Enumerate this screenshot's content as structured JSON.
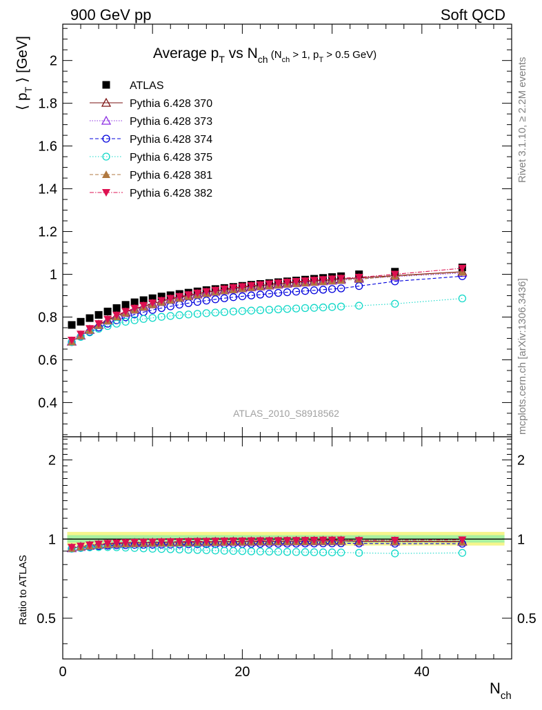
{
  "header": {
    "left": "900 GeV pp",
    "right": "Soft QCD"
  },
  "side": {
    "rivet": "Rivet 3.1.10, ≥ 2.2M events",
    "mcplots": "mcplots.cern.ch [arXiv:1306.3436]"
  },
  "colors": {
    "ATLAS": "#000000",
    "p370": "#7a1010",
    "p373": "#8a2be2",
    "p374": "#0000dd",
    "p375": "#10d8c8",
    "p381": "#b07840",
    "p382": "#dd1050",
    "band_outer": "#f5f58c",
    "band_inner": "#a8f0a0"
  },
  "chart_data": [
    {
      "type": "scatter",
      "title_parts": {
        "main": "Average p",
        "main_sub": "T",
        "vs": " vs N",
        "vs_sub": "ch",
        "cond1": " (N",
        "cond1_sub": "ch",
        "cond2": " > 1, p",
        "cond2_sub": "T",
        "cond3": " > 0.5 GeV)"
      },
      "ylabel_parts": {
        "open": "⟨ p",
        "sub": "T",
        "close": " ⟩  [GeV]"
      },
      "watermark": "ATLAS_2010_S8918562",
      "xlim": [
        0,
        50
      ],
      "ylim": [
        0.24,
        2.17
      ],
      "yticks": [
        0.4,
        0.6,
        0.8,
        1.0,
        1.2,
        1.4,
        1.6,
        1.8,
        2.0
      ],
      "ytick_labels": [
        "0.4",
        "0.6",
        "0.8",
        "1",
        "1.2",
        "1.4",
        "1.6",
        "1.8",
        "2"
      ],
      "legend_position": "top-left",
      "x": [
        1,
        2,
        3,
        4,
        5,
        6,
        7,
        8,
        9,
        10,
        11,
        12,
        13,
        14,
        15,
        16,
        17,
        18,
        19,
        20,
        21,
        22,
        23,
        24,
        25,
        26,
        27,
        28,
        29,
        30,
        31,
        33,
        37,
        44.5
      ],
      "series": [
        {
          "name": "ATLAS",
          "color_key": "ATLAS",
          "marker": "square",
          "values": [
            0.763,
            0.778,
            0.795,
            0.81,
            0.826,
            0.842,
            0.857,
            0.869,
            0.879,
            0.888,
            0.896,
            0.902,
            0.908,
            0.914,
            0.92,
            0.926,
            0.931,
            0.936,
            0.941,
            0.946,
            0.951,
            0.955,
            0.959,
            0.963,
            0.967,
            0.971,
            0.975,
            0.979,
            0.983,
            0.987,
            0.991,
            1.0,
            1.012,
            1.032
          ]
        },
        {
          "name": "Pythia 6.428 370",
          "color_key": "p370",
          "marker": "triangle-up-open",
          "dash": "",
          "values": [
            0.685,
            0.714,
            0.741,
            0.765,
            0.786,
            0.806,
            0.823,
            0.838,
            0.851,
            0.863,
            0.874,
            0.884,
            0.893,
            0.901,
            0.909,
            0.916,
            0.922,
            0.928,
            0.934,
            0.939,
            0.944,
            0.948,
            0.952,
            0.956,
            0.96,
            0.963,
            0.966,
            0.969,
            0.972,
            0.975,
            0.978,
            0.983,
            0.994,
            1.012
          ]
        },
        {
          "name": "Pythia 6.428 373",
          "color_key": "p373",
          "marker": "triangle-up-open",
          "dash": "1.5,2",
          "values": [
            0.686,
            0.713,
            0.739,
            0.762,
            0.783,
            0.802,
            0.819,
            0.834,
            0.847,
            0.859,
            0.87,
            0.88,
            0.889,
            0.897,
            0.905,
            0.912,
            0.918,
            0.924,
            0.929,
            0.934,
            0.939,
            0.943,
            0.947,
            0.951,
            0.955,
            0.958,
            0.961,
            0.964,
            0.967,
            0.97,
            0.973,
            0.978,
            0.989,
            1.006
          ]
        },
        {
          "name": "Pythia 6.428 374",
          "color_key": "p374",
          "marker": "circle-open",
          "dash": "5,3",
          "values": [
            0.683,
            0.708,
            0.731,
            0.751,
            0.769,
            0.785,
            0.799,
            0.812,
            0.823,
            0.833,
            0.842,
            0.85,
            0.858,
            0.865,
            0.871,
            0.877,
            0.883,
            0.888,
            0.893,
            0.897,
            0.901,
            0.905,
            0.909,
            0.913,
            0.916,
            0.919,
            0.922,
            0.925,
            0.928,
            0.931,
            0.934,
            0.945,
            0.967,
            0.991
          ]
        },
        {
          "name": "Pythia 6.428 375",
          "color_key": "p375",
          "marker": "circle-open",
          "dash": "1.5,2.5",
          "values": [
            0.683,
            0.707,
            0.728,
            0.745,
            0.758,
            0.769,
            0.778,
            0.785,
            0.791,
            0.796,
            0.801,
            0.805,
            0.809,
            0.812,
            0.815,
            0.818,
            0.821,
            0.823,
            0.826,
            0.828,
            0.83,
            0.832,
            0.834,
            0.836,
            0.838,
            0.84,
            0.842,
            0.843,
            0.845,
            0.847,
            0.849,
            0.853,
            0.862,
            0.887
          ]
        },
        {
          "name": "Pythia 6.428 381",
          "color_key": "p381",
          "marker": "triangle-up-filled",
          "dash": "5,3",
          "values": [
            0.684,
            0.712,
            0.738,
            0.761,
            0.782,
            0.801,
            0.818,
            0.833,
            0.846,
            0.858,
            0.869,
            0.879,
            0.888,
            0.896,
            0.903,
            0.91,
            0.917,
            0.923,
            0.928,
            0.933,
            0.938,
            0.942,
            0.946,
            0.95,
            0.954,
            0.957,
            0.96,
            0.963,
            0.966,
            0.969,
            0.972,
            0.977,
            0.991,
            1.01
          ]
        },
        {
          "name": "Pythia 6.428 382",
          "color_key": "p382",
          "marker": "triangle-down-filled",
          "dash": "6,2,1.5,2",
          "values": [
            0.692,
            0.72,
            0.746,
            0.769,
            0.79,
            0.809,
            0.826,
            0.841,
            0.854,
            0.866,
            0.877,
            0.887,
            0.896,
            0.904,
            0.912,
            0.919,
            0.925,
            0.931,
            0.937,
            0.942,
            0.947,
            0.951,
            0.955,
            0.959,
            0.963,
            0.966,
            0.969,
            0.972,
            0.975,
            0.978,
            0.981,
            0.986,
            1.0,
            1.028
          ]
        }
      ]
    },
    {
      "type": "scatter",
      "ylabel": "Ratio to ATLAS",
      "xlabel_parts": {
        "main": "N",
        "sub": "ch"
      },
      "xlim": [
        0,
        50
      ],
      "ylim": [
        0.35,
        2.45
      ],
      "yscale": "log",
      "xticks": [
        0,
        20,
        40
      ],
      "xtick_labels": [
        "0",
        "20",
        "40"
      ],
      "yticks": [
        0.5,
        1,
        2
      ],
      "ytick_labels": [
        "0.5",
        "1",
        "2"
      ],
      "band_outer": [
        0.945,
        1.065
      ],
      "band_inner": [
        0.97,
        1.035
      ],
      "x": [
        1,
        2,
        3,
        4,
        5,
        6,
        7,
        8,
        9,
        10,
        11,
        12,
        13,
        14,
        15,
        16,
        17,
        18,
        19,
        20,
        21,
        22,
        23,
        24,
        25,
        26,
        27,
        28,
        29,
        30,
        31,
        33,
        37,
        44.5
      ],
      "series": [
        {
          "name": "Pythia 6.428 370",
          "color_key": "p370",
          "marker": "triangle-up-open",
          "dash": "",
          "values": [
            0.925,
            0.935,
            0.945,
            0.952,
            0.958,
            0.962,
            0.965,
            0.967,
            0.968,
            0.97,
            0.971,
            0.972,
            0.973,
            0.974,
            0.975,
            0.976,
            0.977,
            0.978,
            0.979,
            0.979,
            0.98,
            0.981,
            0.981,
            0.982,
            0.982,
            0.983,
            0.983,
            0.984,
            0.985,
            0.985,
            0.986,
            0.982,
            0.981,
            0.98
          ]
        },
        {
          "name": "Pythia 6.428 373",
          "color_key": "p373",
          "marker": "triangle-up-open",
          "dash": "1.5,2",
          "values": [
            0.923,
            0.933,
            0.942,
            0.949,
            0.954,
            0.958,
            0.961,
            0.963,
            0.964,
            0.966,
            0.967,
            0.968,
            0.969,
            0.97,
            0.971,
            0.972,
            0.973,
            0.974,
            0.975,
            0.975,
            0.976,
            0.977,
            0.977,
            0.978,
            0.978,
            0.979,
            0.979,
            0.98,
            0.981,
            0.981,
            0.982,
            0.978,
            0.977,
            0.975
          ]
        },
        {
          "name": "Pythia 6.428 374",
          "color_key": "p374",
          "marker": "circle-open",
          "dash": "5,3",
          "values": [
            0.92,
            0.925,
            0.933,
            0.94,
            0.944,
            0.947,
            0.948,
            0.95,
            0.951,
            0.952,
            0.953,
            0.953,
            0.954,
            0.955,
            0.955,
            0.956,
            0.956,
            0.957,
            0.958,
            0.958,
            0.959,
            0.959,
            0.96,
            0.96,
            0.961,
            0.961,
            0.962,
            0.962,
            0.963,
            0.963,
            0.964,
            0.962,
            0.961,
            0.96
          ]
        },
        {
          "name": "Pythia 6.428 375",
          "color_key": "p375",
          "marker": "circle-open",
          "dash": "1.5,2.5",
          "values": [
            0.92,
            0.925,
            0.93,
            0.932,
            0.932,
            0.931,
            0.928,
            0.925,
            0.922,
            0.919,
            0.917,
            0.915,
            0.913,
            0.911,
            0.909,
            0.907,
            0.905,
            0.903,
            0.901,
            0.9,
            0.898,
            0.897,
            0.896,
            0.895,
            0.894,
            0.893,
            0.892,
            0.891,
            0.89,
            0.89,
            0.889,
            0.886,
            0.882,
            0.886
          ]
        },
        {
          "name": "Pythia 6.428 381",
          "color_key": "p381",
          "marker": "triangle-up-filled",
          "dash": "5,3",
          "values": [
            0.922,
            0.932,
            0.941,
            0.948,
            0.953,
            0.957,
            0.96,
            0.962,
            0.963,
            0.965,
            0.966,
            0.967,
            0.968,
            0.969,
            0.97,
            0.971,
            0.972,
            0.973,
            0.974,
            0.974,
            0.975,
            0.976,
            0.976,
            0.977,
            0.977,
            0.978,
            0.978,
            0.979,
            0.98,
            0.98,
            0.981,
            0.977,
            0.976,
            0.974
          ]
        },
        {
          "name": "Pythia 6.428 382",
          "color_key": "p382",
          "marker": "triangle-down-filled",
          "dash": "6,2,1.5,2",
          "values": [
            0.93,
            0.94,
            0.95,
            0.957,
            0.963,
            0.967,
            0.97,
            0.972,
            0.973,
            0.975,
            0.976,
            0.977,
            0.978,
            0.979,
            0.98,
            0.981,
            0.982,
            0.983,
            0.984,
            0.984,
            0.985,
            0.986,
            0.986,
            0.987,
            0.988,
            0.988,
            0.989,
            0.99,
            0.991,
            0.991,
            0.992,
            0.988,
            0.99,
            0.993
          ]
        }
      ]
    }
  ]
}
